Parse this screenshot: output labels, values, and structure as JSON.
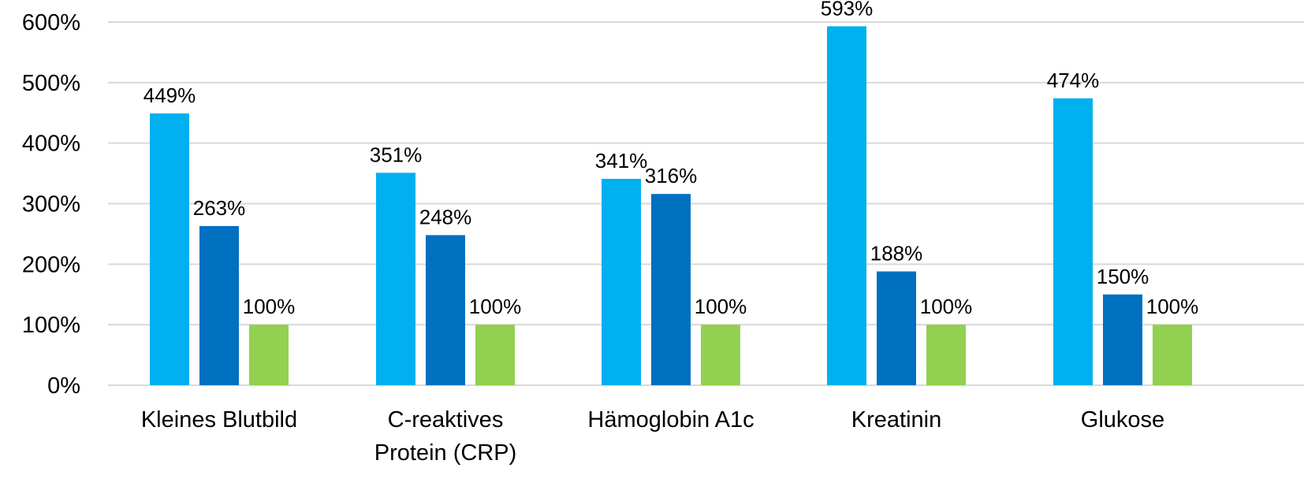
{
  "chart_data": {
    "type": "bar",
    "categories": [
      [
        "Kleines Blutbild"
      ],
      [
        "C-reaktives",
        "Protein (CRP)"
      ],
      [
        "Hämoglobin A1c"
      ],
      [
        "Kreatinin"
      ],
      [
        "Glukose"
      ]
    ],
    "series": [
      {
        "values": [
          449,
          351,
          341,
          593,
          474
        ],
        "color": "#00b0f0"
      },
      {
        "values": [
          263,
          248,
          316,
          188,
          150
        ],
        "color": "#0070c0"
      },
      {
        "values": [
          100,
          100,
          100,
          100,
          100
        ],
        "color": "#92d050"
      }
    ],
    "value_suffix": "%",
    "ylim": [
      0,
      600
    ],
    "yticks": [
      0,
      100,
      200,
      300,
      400,
      500,
      600
    ],
    "ytick_labels": [
      "0%",
      "100%",
      "200%",
      "300%",
      "400%",
      "500%",
      "600%"
    ],
    "data_labels": [
      [
        "449%",
        "263%",
        "100%"
      ],
      [
        "351%",
        "248%",
        "100%"
      ],
      [
        "341%",
        "316%",
        "100%"
      ],
      [
        "593%",
        "188%",
        "100%"
      ],
      [
        "474%",
        "150%",
        "100%"
      ]
    ],
    "grid": true,
    "legend": "none",
    "title": "",
    "xlabel": "",
    "ylabel": ""
  }
}
